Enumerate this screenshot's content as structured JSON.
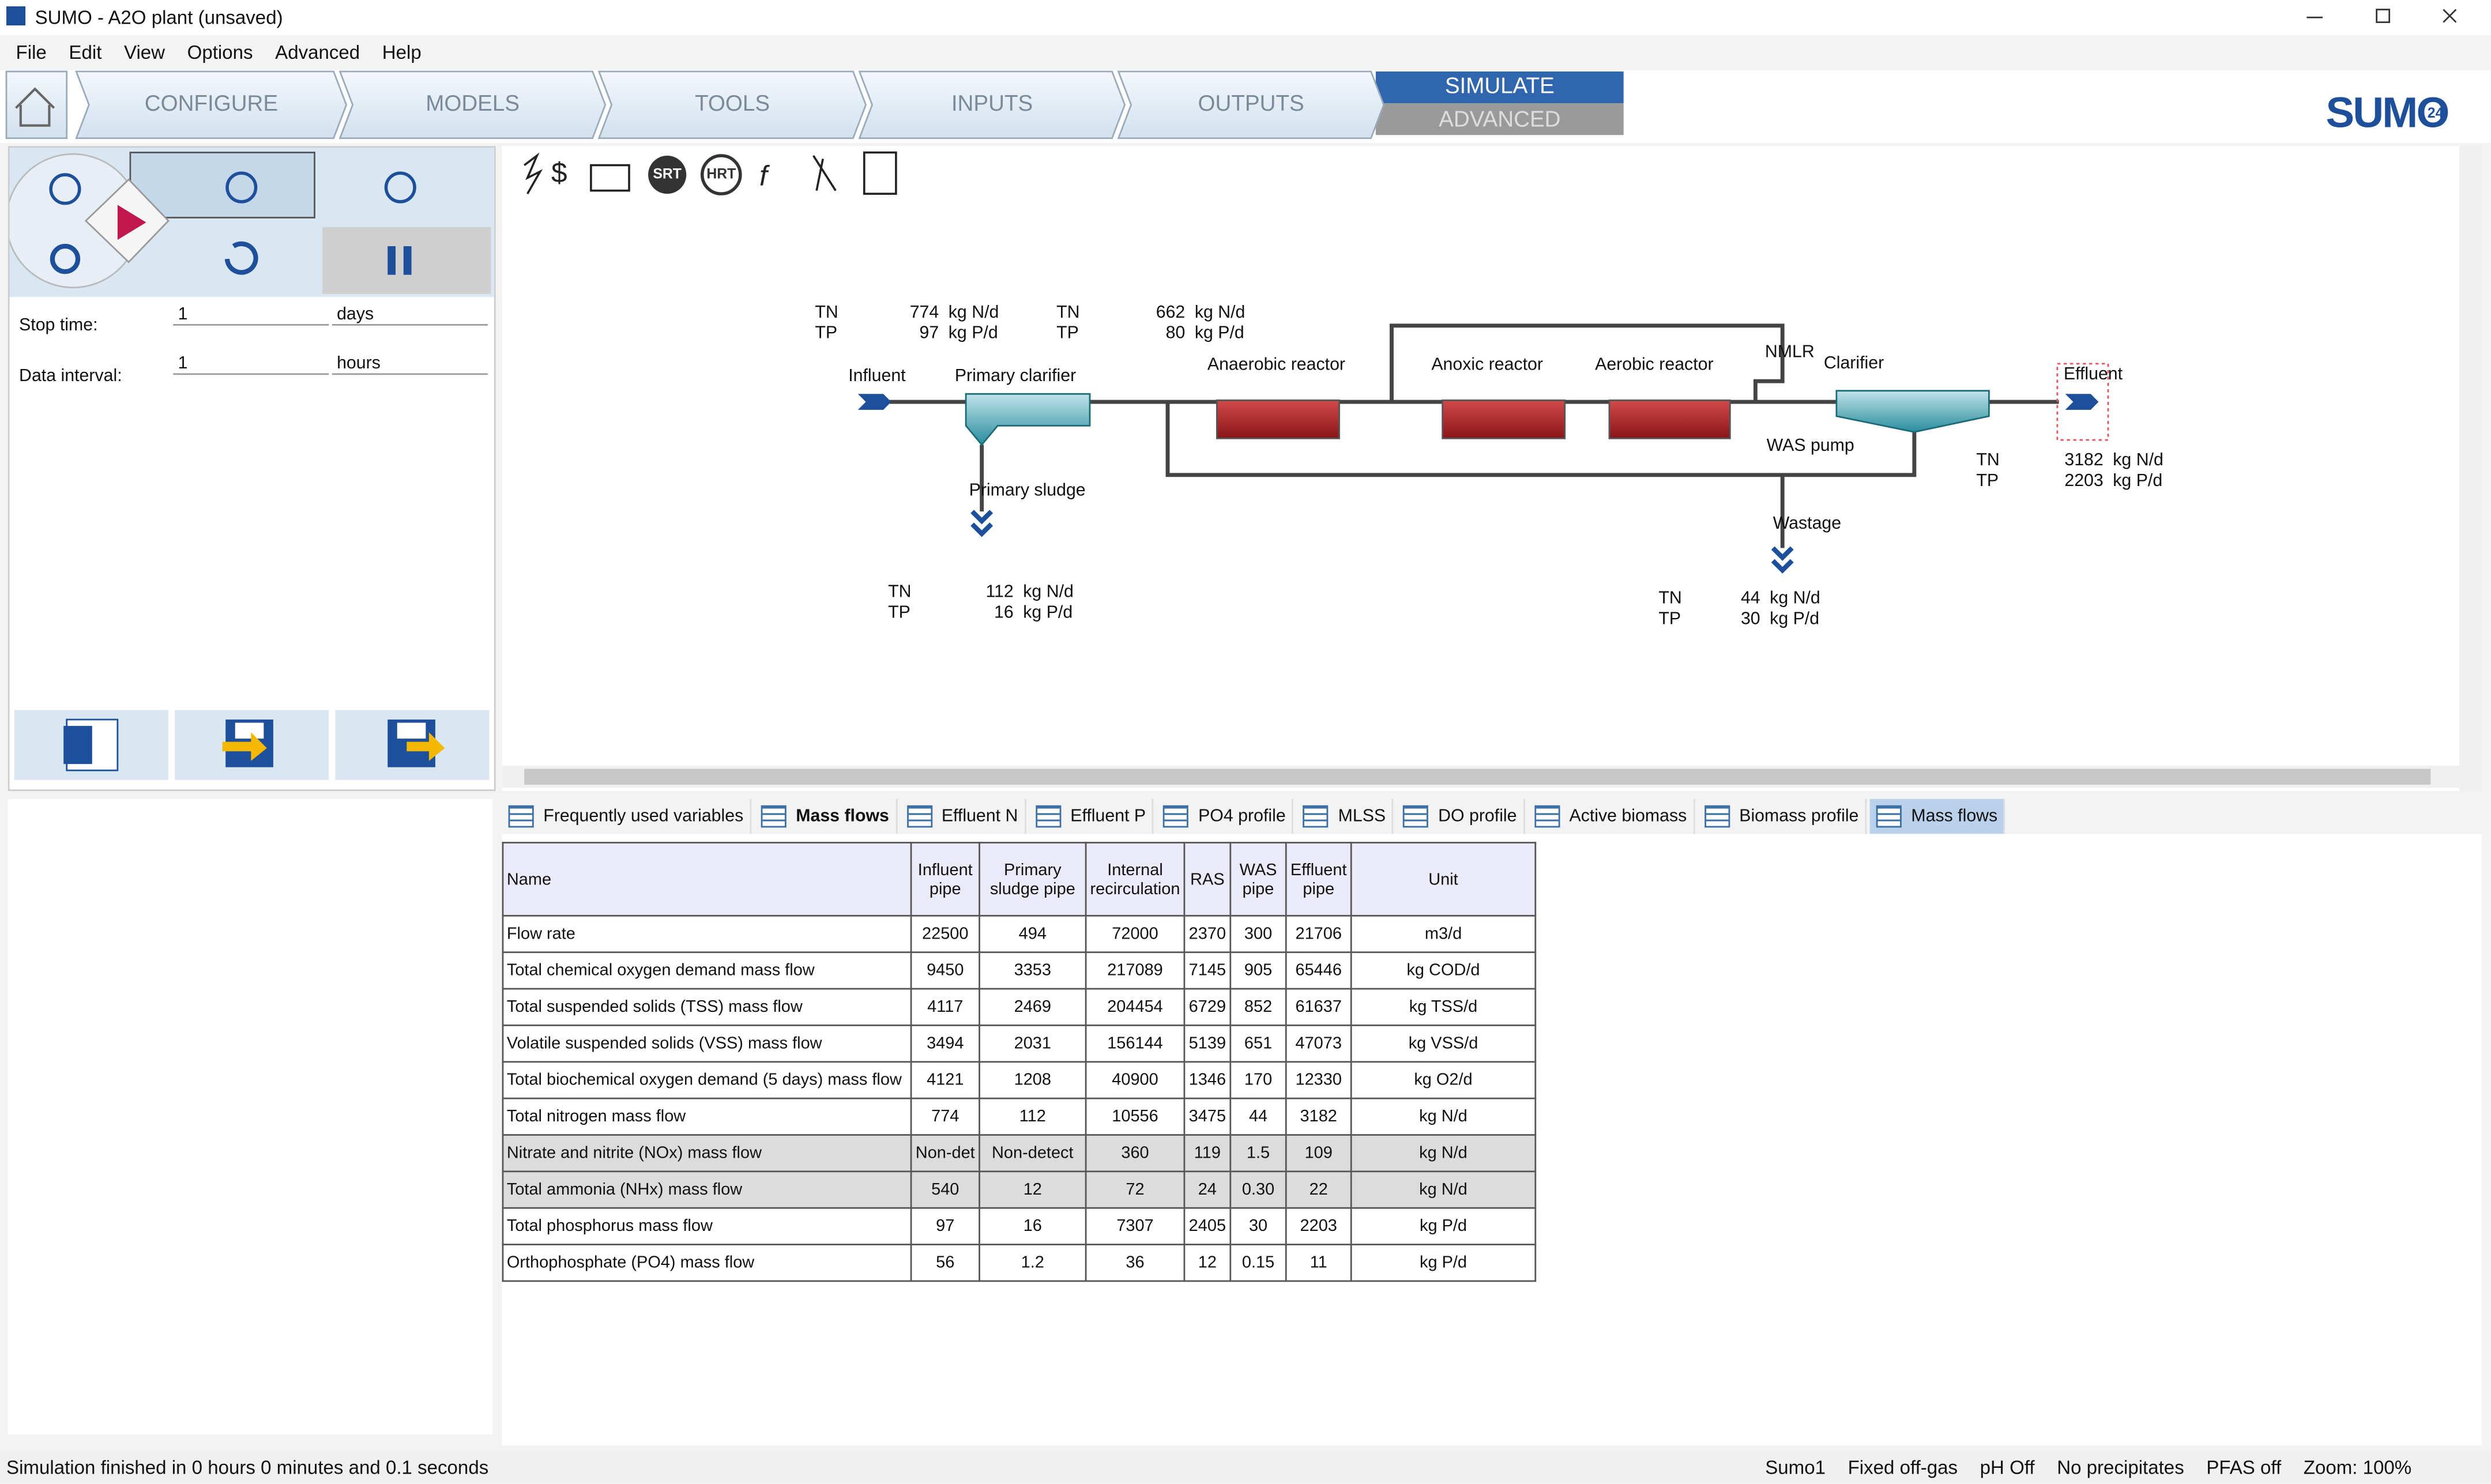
{
  "window": {
    "title": "SUMO - A2O plant (unsaved)",
    "menu": [
      "File",
      "Edit",
      "View",
      "Options",
      "Advanced",
      "Help"
    ]
  },
  "tabs": {
    "items": [
      "CONFIGURE",
      "MODELS",
      "TOOLS",
      "INPUTS",
      "OUTPUTS"
    ],
    "simulate": "SIMULATE",
    "advanced": "ADVANCED"
  },
  "logo": {
    "text": "SUMO",
    "version": "24"
  },
  "sim_panel": {
    "stop_time_label": "Stop time:",
    "stop_time": "1",
    "stop_unit": "days",
    "interval_label": "Data interval:",
    "interval": "1",
    "interval_unit": "hours"
  },
  "toolbar": {
    "srt": "SRT",
    "hrt": "HRT"
  },
  "diagram": {
    "labels": {
      "influent": "Influent",
      "primary_clarifier": "Primary clarifier",
      "primary_sludge": "Primary sludge",
      "anaerobic": "Anaerobic reactor",
      "anoxic": "Anoxic reactor",
      "aerobic": "Aerobic reactor",
      "nmlr": "NMLR",
      "clarifier": "Clarifier",
      "was_pump": "WAS pump",
      "wastage": "Wastage",
      "effluent": "Effluent"
    },
    "tn_label": "TN",
    "tp_label": "TP",
    "n_unit": "kg N/d",
    "p_unit": "kg P/d",
    "mass_boxes": [
      {
        "tn": 774,
        "tp": 97
      },
      {
        "tn": 662,
        "tp": 80
      },
      {
        "tn": 112,
        "tp": 16
      },
      {
        "tn": 44,
        "tp": 30
      },
      {
        "tn": 3182,
        "tp": 2203
      }
    ]
  },
  "result_tabs": [
    "Frequently used variables",
    "Mass flows",
    "Effluent N",
    "Effluent P",
    "PO4 profile",
    "MLSS",
    "DO profile",
    "Active biomass",
    "Biomass profile",
    "Mass flows"
  ],
  "table": {
    "header": [
      "Name",
      "Influent pipe",
      "Primary sludge pipe",
      "Internal recirculation",
      "RAS",
      "WAS pipe",
      "Effluent pipe",
      "Unit"
    ],
    "rows": [
      [
        "Flow rate",
        22500,
        494,
        72000,
        2370,
        300,
        21706,
        "m3/d"
      ],
      [
        "Total chemical oxygen demand mass flow",
        9450,
        3353,
        217089,
        7145,
        905,
        65446,
        "kg COD/d"
      ],
      [
        "Total suspended solids (TSS) mass flow",
        4117,
        2469,
        204454,
        6729,
        852,
        61637,
        "kg TSS/d"
      ],
      [
        "Volatile suspended solids (VSS) mass flow",
        3494,
        2031,
        156144,
        5139,
        651,
        47073,
        "kg VSS/d"
      ],
      [
        "Total biochemical oxygen demand (5 days) mass flow",
        4121,
        1208,
        40900,
        1346,
        170,
        12330,
        "kg O2/d"
      ],
      [
        "Total nitrogen mass flow",
        774,
        112,
        10556,
        3475,
        44,
        3182,
        "kg N/d"
      ],
      [
        "Nitrate and nitrite (NOx) mass flow",
        "Non-det",
        "Non-detect",
        360,
        119,
        1.5,
        109,
        "kg N/d"
      ],
      [
        "Total ammonia (NHx) mass flow",
        540,
        12,
        72,
        24,
        "0.30",
        22,
        "kg N/d"
      ],
      [
        "Total phosphorus mass flow",
        97,
        16,
        7307,
        2405,
        30,
        2203,
        "kg P/d"
      ],
      [
        "Orthophosphate (PO4) mass flow",
        56,
        1.2,
        36,
        12,
        0.15,
        11,
        "kg P/d"
      ]
    ]
  },
  "status": {
    "message": "Simulation finished in 0 hours 0 minutes and 0.1 seconds",
    "items": [
      "Sumo1",
      "Fixed off-gas",
      "pH Off",
      "No precipitates",
      "PFAS off"
    ],
    "zoom": "Zoom: 100%"
  }
}
